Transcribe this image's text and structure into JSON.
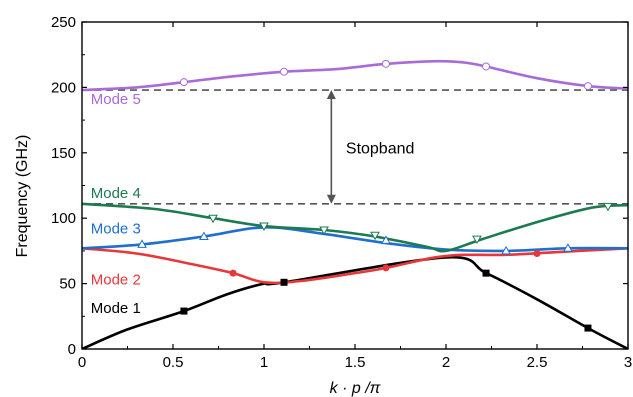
{
  "chart_data": {
    "type": "line",
    "xlabel": "k · p /π",
    "ylabel": "Frequency (GHz)",
    "xlim": [
      0,
      3
    ],
    "ylim": [
      0,
      250
    ],
    "xticks": [
      "0",
      "0.5",
      "1",
      "1.5",
      "2",
      "2.5",
      "3"
    ],
    "yticks": [
      "0",
      "50",
      "100",
      "150",
      "200",
      "250"
    ],
    "grid": false,
    "series": [
      {
        "name": "Mode 1",
        "color": "#000000",
        "marker": "square-filled",
        "x": [
          0,
          0.25,
          0.56,
          0.8,
          1.0,
          1.11,
          2.0,
          2.22,
          2.5,
          2.78,
          3.0
        ],
        "y": [
          0,
          15,
          29,
          42,
          50,
          51,
          70,
          58,
          38,
          16,
          0
        ],
        "marker_x": [
          0.56,
          1.11,
          2.22,
          2.78
        ],
        "marker_y": [
          29,
          51,
          58,
          16
        ]
      },
      {
        "name": "Mode 2",
        "color": "#e8373a",
        "marker": "circle-filled",
        "x": [
          0,
          0.3,
          0.6,
          0.83,
          1.0,
          1.2,
          1.5,
          1.67,
          1.9,
          2.0,
          2.1,
          2.33,
          2.6,
          3.0
        ],
        "y": [
          77,
          73,
          65,
          58,
          51,
          52,
          58,
          62,
          69,
          71,
          72,
          72,
          74,
          77
        ],
        "marker_x": [
          0.83,
          1.67,
          2.5
        ],
        "marker_y": [
          58,
          62,
          73
        ]
      },
      {
        "name": "Mode 3",
        "color": "#1f6fd1",
        "marker": "triangle-up-open",
        "x": [
          0,
          0.33,
          0.67,
          1.0,
          1.33,
          1.67,
          2.0,
          2.33,
          2.67,
          3.0
        ],
        "y": [
          77,
          80,
          86,
          93,
          88,
          81,
          76,
          75,
          77,
          77
        ],
        "marker_x": [
          0.33,
          0.67,
          1.67,
          2.33,
          2.67
        ],
        "marker_y": [
          80,
          86,
          83,
          75,
          77
        ]
      },
      {
        "name": "Mode 4",
        "color": "#1e7a50",
        "marker": "triangle-down-open",
        "x": [
          0,
          0.4,
          0.72,
          1.0,
          1.33,
          1.61,
          1.9,
          2.0,
          2.2,
          2.5,
          2.8,
          3.0
        ],
        "y": [
          111,
          107,
          100,
          94,
          91,
          86,
          78,
          75,
          84,
          97,
          108,
          110
        ],
        "marker_x": [
          0.72,
          1.0,
          1.33,
          1.61,
          2.17,
          2.89
        ],
        "marker_y": [
          100,
          94,
          91,
          87,
          84,
          109
        ]
      },
      {
        "name": "Mode 5",
        "color": "#a86bd8",
        "marker": "circle-open",
        "x": [
          0,
          0.3,
          0.56,
          0.8,
          1.11,
          1.4,
          1.67,
          1.95,
          2.1,
          2.22,
          2.5,
          2.78,
          3.0
        ],
        "y": [
          198,
          200,
          204,
          208,
          212,
          214,
          218,
          220,
          219,
          216,
          207,
          201,
          199
        ],
        "marker_x": [
          0.56,
          1.11,
          1.67,
          2.22,
          2.78
        ],
        "marker_y": [
          204,
          212,
          218,
          216,
          201
        ]
      }
    ],
    "reference_lines": [
      {
        "axis": "y",
        "value": 198,
        "style": "dashed",
        "color": "#555555"
      },
      {
        "axis": "y",
        "value": 111,
        "style": "dashed",
        "color": "#555555"
      }
    ],
    "annotations": [
      {
        "text": "Stopband",
        "x": 1.45,
        "y": 154
      },
      {
        "type": "double-arrow",
        "x": 1.37,
        "y_from": 111,
        "y_to": 198,
        "color": "#555555"
      }
    ],
    "series_labels": [
      {
        "text": "Mode 5",
        "x": 0.18,
        "y": 192
      },
      {
        "text": "Mode 4",
        "x": 0.18,
        "y": 120
      },
      {
        "text": "Mode 3",
        "x": 0.18,
        "y": 93
      },
      {
        "text": "Mode 2",
        "x": 0.18,
        "y": 54
      },
      {
        "text": "Mode 1",
        "x": 0.18,
        "y": 32
      }
    ]
  }
}
